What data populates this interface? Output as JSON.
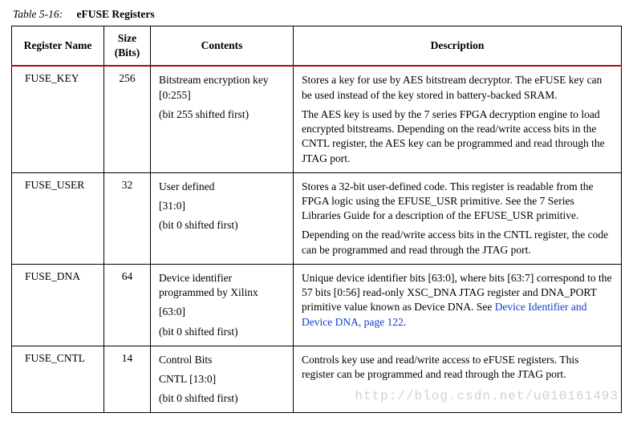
{
  "caption": {
    "label": "Table 5-16:",
    "title": "eFUSE Registers"
  },
  "columns": [
    "Register Name",
    "Size (Bits)",
    "Contents",
    "Description"
  ],
  "rows": [
    {
      "name": "FUSE_KEY",
      "size": "256",
      "contents": [
        "Bitstream encryption key [0:255]",
        "(bit 255 shifted first)"
      ],
      "desc": [
        "Stores a key for use by AES bitstream decryptor. The eFUSE key can be used instead of the key stored in battery-backed SRAM.",
        "The AES key is used by the 7 series FPGA decryption engine to load encrypted bitstreams. Depending on the read/write access bits in the CNTL register, the AES key can be programmed and read through the JTAG port."
      ],
      "link": null
    },
    {
      "name": "FUSE_USER",
      "size": "32",
      "contents": [
        "User defined",
        "[31:0]",
        "(bit 0 shifted first)"
      ],
      "desc": [
        "Stores a 32-bit user-defined code. This register is readable from the FPGA logic using the EFUSE_USR primitive. See the 7 Series Libraries Guide for a description of the EFUSE_USR primitive.",
        "Depending on the read/write access bits in the CNTL register, the code can be programmed and read through the JTAG port."
      ],
      "link": null
    },
    {
      "name": "FUSE_DNA",
      "size": "64",
      "contents": [
        "Device identifier programmed by Xilinx",
        "[63:0]",
        "(bit 0 shifted first)"
      ],
      "desc": [
        "Unique device identifier bits [63:0], where bits [63:7] correspond to the 57 bits [0:56] read-only XSC_DNA JTAG register and DNA_PORT primitive value known as Device DNA. See "
      ],
      "link": {
        "text": "Device Identifier and Device DNA, page 122",
        "trailing": "."
      }
    },
    {
      "name": "FUSE_CNTL",
      "size": "14",
      "contents": [
        "Control Bits",
        "CNTL [13:0]",
        "(bit 0 shifted first)"
      ],
      "desc": [
        "Controls key use and read/write access to eFUSE registers. This register can be programmed and read through the JTAG port."
      ],
      "link": null
    }
  ],
  "watermark": "http://blog.csdn.net/u010161493",
  "colors": {
    "header_rule": "#b10718",
    "link": "#0b3ec9"
  }
}
